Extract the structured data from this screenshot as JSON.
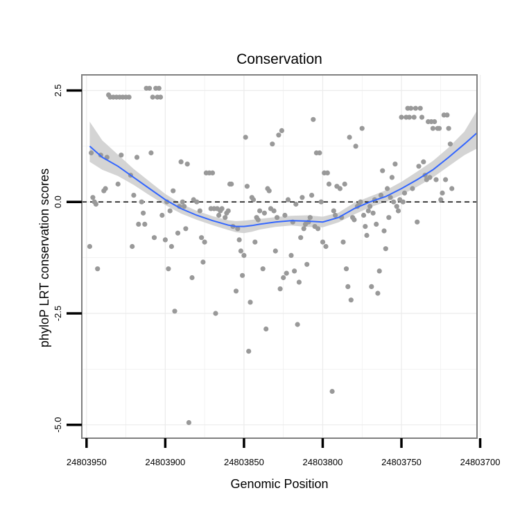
{
  "chart_data": {
    "type": "scatter",
    "title": "Conservation",
    "xlabel": "Genomic Position",
    "ylabel": "phyloP LRT conservation scores",
    "xlim": [
      24803953,
      24803702
    ],
    "ylim": [
      -5.3,
      2.85
    ],
    "x_reversed": true,
    "x_ticks": [
      24803950,
      24803900,
      24803850,
      24803800,
      24803750,
      24803700
    ],
    "x_tick_labels": [
      "24803950",
      "24803900",
      "24803850",
      "24803800",
      "24803750",
      "24803700"
    ],
    "y_ticks": [
      2.5,
      0.0,
      -2.5,
      -5.0
    ],
    "y_tick_labels": [
      "2.5",
      "0.0",
      "-2.5",
      "-5.0"
    ],
    "reference_line": {
      "y": 0.0,
      "style": "dashed"
    },
    "colors": {
      "points": "#999999",
      "smooth_line": "#3366FF",
      "confidence_band": "#CCCCCC",
      "panel_border": "#7F7F7F",
      "grid": "#EBEBEB"
    },
    "points": [
      [
        24803948,
        -1.0
      ],
      [
        24803947,
        1.1
      ],
      [
        24803946,
        0.1
      ],
      [
        24803945,
        0.0
      ],
      [
        24803944,
        -0.05
      ],
      [
        24803943,
        -1.5
      ],
      [
        24803941,
        1.05
      ],
      [
        24803939,
        0.25
      ],
      [
        24803938,
        0.3
      ],
      [
        24803937,
        1.0
      ],
      [
        24803936,
        2.4
      ],
      [
        24803935,
        2.35
      ],
      [
        24803933,
        2.35
      ],
      [
        24803931,
        2.35
      ],
      [
        24803930,
        0.4
      ],
      [
        24803929,
        2.35
      ],
      [
        24803927,
        2.35
      ],
      [
        24803925,
        2.35
      ],
      [
        24803923,
        2.35
      ],
      [
        24803928,
        1.05
      ],
      [
        24803922,
        0.6
      ],
      [
        24803921,
        -1.0
      ],
      [
        24803920,
        0.15
      ],
      [
        24803918,
        1.0
      ],
      [
        24803917,
        -0.5
      ],
      [
        24803915,
        0.0
      ],
      [
        24803914,
        -0.25
      ],
      [
        24803913,
        -0.5
      ],
      [
        24803912,
        2.55
      ],
      [
        24803910,
        2.55
      ],
      [
        24803908,
        2.35
      ],
      [
        24803906,
        2.55
      ],
      [
        24803905,
        2.35
      ],
      [
        24803904,
        2.55
      ],
      [
        24803903,
        2.35
      ],
      [
        24803909,
        1.1
      ],
      [
        24803907,
        -0.8
      ],
      [
        24803902,
        -0.3
      ],
      [
        24803900,
        -0.85
      ],
      [
        24803899,
        0.0
      ],
      [
        24803898,
        -1.5
      ],
      [
        24803897,
        -0.2
      ],
      [
        24803896,
        -1.0
      ],
      [
        24803895,
        0.25
      ],
      [
        24803894,
        -2.45
      ],
      [
        24803892,
        -0.7
      ],
      [
        24803891,
        -0.1
      ],
      [
        24803890,
        0.9
      ],
      [
        24803889,
        0.0
      ],
      [
        24803888,
        -0.1
      ],
      [
        24803887,
        -0.6
      ],
      [
        24803886,
        0.85
      ],
      [
        24803885,
        -4.95
      ],
      [
        24803883,
        -1.7
      ],
      [
        24803882,
        0.05
      ],
      [
        24803880,
        0.0
      ],
      [
        24803878,
        -0.2
      ],
      [
        24803877,
        -0.8
      ],
      [
        24803876,
        -1.35
      ],
      [
        24803875,
        -0.9
      ],
      [
        24803874,
        0.65
      ],
      [
        24803872,
        0.65
      ],
      [
        24803871,
        -0.15
      ],
      [
        24803870,
        0.65
      ],
      [
        24803869,
        -0.15
      ],
      [
        24803868,
        -2.5
      ],
      [
        24803867,
        -0.15
      ],
      [
        24803866,
        -0.3
      ],
      [
        24803865,
        -0.2
      ],
      [
        24803864,
        -0.15
      ],
      [
        24803862,
        -0.35
      ],
      [
        24803861,
        -0.25
      ],
      [
        24803860,
        -0.2
      ],
      [
        24803859,
        0.4
      ],
      [
        24803858,
        0.4
      ],
      [
        24803857,
        -0.55
      ],
      [
        24803855,
        -2.0
      ],
      [
        24803854,
        -0.6
      ],
      [
        24803853,
        -0.85
      ],
      [
        24803852,
        -1.1
      ],
      [
        24803851,
        -1.65
      ],
      [
        24803850,
        -1.2
      ],
      [
        24803849,
        1.45
      ],
      [
        24803848,
        0.35
      ],
      [
        24803847,
        -3.35
      ],
      [
        24803846,
        -2.25
      ],
      [
        24803845,
        0.1
      ],
      [
        24803844,
        0.05
      ],
      [
        24803843,
        -0.9
      ],
      [
        24803842,
        -0.35
      ],
      [
        24803841,
        -0.4
      ],
      [
        24803840,
        -0.2
      ],
      [
        24803838,
        -1.5
      ],
      [
        24803837,
        -0.25
      ],
      [
        24803836,
        -2.85
      ],
      [
        24803835,
        0.3
      ],
      [
        24803834,
        0.25
      ],
      [
        24803833,
        -0.15
      ],
      [
        24803832,
        1.3
      ],
      [
        24803831,
        -0.2
      ],
      [
        24803830,
        -1.1
      ],
      [
        24803829,
        -0.35
      ],
      [
        24803828,
        1.5
      ],
      [
        24803827,
        -1.95
      ],
      [
        24803826,
        1.6
      ],
      [
        24803825,
        -1.7
      ],
      [
        24803824,
        -0.3
      ],
      [
        24803823,
        -1.6
      ],
      [
        24803822,
        0.05
      ],
      [
        24803820,
        -1.2
      ],
      [
        24803819,
        -0.45
      ],
      [
        24803818,
        -1.55
      ],
      [
        24803817,
        -0.05
      ],
      [
        24803816,
        -2.75
      ],
      [
        24803815,
        -1.8
      ],
      [
        24803814,
        -0.8
      ],
      [
        24803813,
        0.1
      ],
      [
        24803812,
        -0.6
      ],
      [
        24803811,
        -0.5
      ],
      [
        24803810,
        -1.4
      ],
      [
        24803809,
        -0.45
      ],
      [
        24803808,
        -0.35
      ],
      [
        24803807,
        0.15
      ],
      [
        24803806,
        1.85
      ],
      [
        24803805,
        -0.55
      ],
      [
        24803804,
        1.1
      ],
      [
        24803803,
        -0.6
      ],
      [
        24803802,
        1.1
      ],
      [
        24803801,
        0.0
      ],
      [
        24803800,
        -0.9
      ],
      [
        24803799,
        0.65
      ],
      [
        24803798,
        -1.0
      ],
      [
        24803797,
        0.65
      ],
      [
        24803796,
        0.4
      ],
      [
        24803794,
        -4.25
      ],
      [
        24803793,
        -0.2
      ],
      [
        24803792,
        -0.3
      ],
      [
        24803791,
        0.35
      ],
      [
        24803789,
        0.3
      ],
      [
        24803788,
        -0.35
      ],
      [
        24803787,
        -0.9
      ],
      [
        24803786,
        0.4
      ],
      [
        24803785,
        -1.5
      ],
      [
        24803784,
        -1.9
      ],
      [
        24803783,
        1.45
      ],
      [
        24803782,
        -2.2
      ],
      [
        24803781,
        -0.35
      ],
      [
        24803780,
        -0.4
      ],
      [
        24803779,
        1.25
      ],
      [
        24803778,
        -0.1
      ],
      [
        24803777,
        -0.05
      ],
      [
        24803776,
        0.0
      ],
      [
        24803775,
        1.65
      ],
      [
        24803774,
        -0.3
      ],
      [
        24803773,
        -0.55
      ],
      [
        24803772,
        -0.75
      ],
      [
        24803771,
        -0.2
      ],
      [
        24803770,
        -0.1
      ],
      [
        24803769,
        -1.9
      ],
      [
        24803768,
        -0.25
      ],
      [
        24803767,
        0.05
      ],
      [
        24803766,
        -0.5
      ],
      [
        24803765,
        -2.05
      ],
      [
        24803764,
        -1.55
      ],
      [
        24803763,
        0.15
      ],
      [
        24803762,
        0.7
      ],
      [
        24803761,
        -0.65
      ],
      [
        24803760,
        -1.05
      ],
      [
        24803759,
        0.3
      ],
      [
        24803758,
        -0.35
      ],
      [
        24803757,
        0.1
      ],
      [
        24803756,
        0.55
      ],
      [
        24803755,
        0.0
      ],
      [
        24803754,
        0.85
      ],
      [
        24803753,
        -0.1
      ],
      [
        24803752,
        -0.2
      ],
      [
        24803751,
        0.05
      ],
      [
        24803750,
        1.9
      ],
      [
        24803749,
        0.0
      ],
      [
        24803748,
        0.2
      ],
      [
        24803747,
        1.9
      ],
      [
        24803746,
        2.1
      ],
      [
        24803745,
        1.9
      ],
      [
        24803744,
        2.1
      ],
      [
        24803743,
        0.3
      ],
      [
        24803742,
        1.9
      ],
      [
        24803741,
        2.1
      ],
      [
        24803740,
        -0.45
      ],
      [
        24803739,
        0.8
      ],
      [
        24803738,
        2.1
      ],
      [
        24803737,
        1.9
      ],
      [
        24803736,
        0.9
      ],
      [
        24803735,
        0.6
      ],
      [
        24803734,
        0.5
      ],
      [
        24803733,
        1.8
      ],
      [
        24803732,
        0.55
      ],
      [
        24803731,
        1.8
      ],
      [
        24803730,
        1.65
      ],
      [
        24803729,
        1.8
      ],
      [
        24803728,
        0.5
      ],
      [
        24803727,
        1.65
      ],
      [
        24803726,
        1.65
      ],
      [
        24803725,
        0.05
      ],
      [
        24803724,
        0.2
      ],
      [
        24803723,
        1.95
      ],
      [
        24803722,
        0.5
      ],
      [
        24803721,
        1.95
      ],
      [
        24803720,
        1.65
      ],
      [
        24803719,
        1.3
      ],
      [
        24803718,
        0.3
      ]
    ],
    "smooth": {
      "x": [
        24803948,
        24803940,
        24803930,
        24803920,
        24803910,
        24803900,
        24803890,
        24803880,
        24803870,
        24803860,
        24803855,
        24803850,
        24803845,
        24803840,
        24803830,
        24803820,
        24803810,
        24803800,
        24803790,
        24803780,
        24803770,
        24803760,
        24803750,
        24803740,
        24803730,
        24803720,
        24803710,
        24803702
      ],
      "y": [
        1.25,
        1.0,
        0.8,
        0.55,
        0.3,
        0.05,
        -0.15,
        -0.3,
        -0.42,
        -0.52,
        -0.55,
        -0.55,
        -0.53,
        -0.5,
        -0.45,
        -0.42,
        -0.43,
        -0.45,
        -0.35,
        -0.15,
        0.0,
        0.12,
        0.3,
        0.5,
        0.72,
        1.0,
        1.3,
        1.55
      ],
      "lower": [
        0.9,
        0.72,
        0.58,
        0.38,
        0.15,
        -0.07,
        -0.26,
        -0.4,
        -0.52,
        -0.63,
        -0.68,
        -0.7,
        -0.67,
        -0.62,
        -0.56,
        -0.53,
        -0.56,
        -0.57,
        -0.46,
        -0.28,
        -0.12,
        0.0,
        0.16,
        0.34,
        0.55,
        0.8,
        1.05,
        1.2
      ],
      "upper": [
        1.8,
        1.38,
        1.06,
        0.74,
        0.46,
        0.18,
        -0.04,
        -0.2,
        -0.32,
        -0.41,
        -0.43,
        -0.42,
        -0.4,
        -0.38,
        -0.34,
        -0.31,
        -0.3,
        -0.33,
        -0.24,
        -0.02,
        0.12,
        0.26,
        0.45,
        0.68,
        0.92,
        1.22,
        1.58,
        2.05
      ]
    }
  }
}
